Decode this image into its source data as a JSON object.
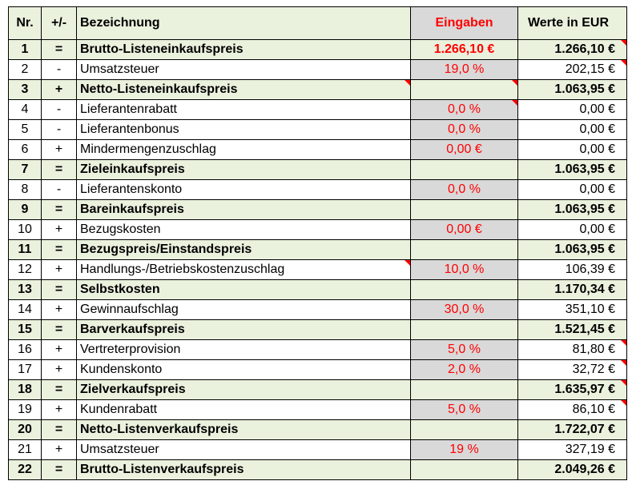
{
  "header": {
    "nr": "Nr.",
    "sign": "+/-",
    "name": "Bezeichnung",
    "input": "Eingaben",
    "value": "Werte in EUR"
  },
  "rows": [
    {
      "nr": "1",
      "sign": "=",
      "name": "Brutto-Listeneinkaufspreis",
      "input": "1.266,10 €",
      "value": "1.266,10 €",
      "bold": true
    },
    {
      "nr": "2",
      "sign": "-",
      "name": "Umsatzsteuer",
      "input": "19,0 %",
      "value": "202,15 €",
      "bold": false
    },
    {
      "nr": "3",
      "sign": "+",
      "name": "Netto-Listeneinkaufspreis",
      "input": "",
      "value": "1.063,95 €",
      "bold": true
    },
    {
      "nr": "4",
      "sign": "-",
      "name": "Lieferantenrabatt",
      "input": "0,0 %",
      "value": "0,00 €",
      "bold": false
    },
    {
      "nr": "5",
      "sign": "-",
      "name": "Lieferantenbonus",
      "input": "0,0 %",
      "value": "0,00 €",
      "bold": false
    },
    {
      "nr": "6",
      "sign": "+",
      "name": "Mindermengenzuschlag",
      "input": "0,00 €",
      "value": "0,00 €",
      "bold": false
    },
    {
      "nr": "7",
      "sign": "=",
      "name": "Zieleinkaufspreis",
      "input": "",
      "value": "1.063,95 €",
      "bold": true
    },
    {
      "nr": "8",
      "sign": "-",
      "name": "Lieferantenskonto",
      "input": "0,0 %",
      "value": "0,00 €",
      "bold": false
    },
    {
      "nr": "9",
      "sign": "=",
      "name": "Bareinkaufspreis",
      "input": "",
      "value": "1.063,95 €",
      "bold": true
    },
    {
      "nr": "10",
      "sign": "+",
      "name": "Bezugskosten",
      "input": "0,00 €",
      "value": "0,00 €",
      "bold": false
    },
    {
      "nr": "11",
      "sign": "=",
      "name": "Bezugspreis/Einstandspreis",
      "input": "",
      "value": "1.063,95 €",
      "bold": true
    },
    {
      "nr": "12",
      "sign": "+",
      "name": "Handlungs-/Betriebskostenzuschlag",
      "input": "10,0 %",
      "value": "106,39 €",
      "bold": false
    },
    {
      "nr": "13",
      "sign": "=",
      "name": "Selbstkosten",
      "input": "",
      "value": "1.170,34 €",
      "bold": true
    },
    {
      "nr": "14",
      "sign": "+",
      "name": "Gewinnaufschlag",
      "input": "30,0 %",
      "value": "351,10 €",
      "bold": false
    },
    {
      "nr": "15",
      "sign": "=",
      "name": "Barverkaufspreis",
      "input": "",
      "value": "1.521,45 €",
      "bold": true
    },
    {
      "nr": "16",
      "sign": "+",
      "name": "Vertreterprovision",
      "input": "5,0 %",
      "value": "81,80 €",
      "bold": false
    },
    {
      "nr": "17",
      "sign": "+",
      "name": "Kundenskonto",
      "input": "2,0 %",
      "value": "32,72 €",
      "bold": false
    },
    {
      "nr": "18",
      "sign": "=",
      "name": "Zielverkaufspreis",
      "input": "",
      "value": "1.635,97 €",
      "bold": true
    },
    {
      "nr": "19",
      "sign": "+",
      "name": "Kundenrabatt",
      "input": "5,0 %",
      "value": "86,10 €",
      "bold": false
    },
    {
      "nr": "20",
      "sign": "=",
      "name": "Netto-Listenverkaufspreis",
      "input": "",
      "value": "1.722,07 €",
      "bold": true
    },
    {
      "nr": "21",
      "sign": "+",
      "name": "Umsatzsteuer",
      "input": "19 %",
      "value": "327,19 €",
      "bold": false
    },
    {
      "nr": "22",
      "sign": "=",
      "name": "Brutto-Listenverkaufspreis",
      "input": "",
      "value": "2.049,26 €",
      "bold": true
    }
  ],
  "colors": {
    "sum_row_bg": "#eaf1dd",
    "input_cell_bg": "#d9d9d9",
    "input_text": "#ff0000",
    "comment_marker": "#ff0000"
  }
}
